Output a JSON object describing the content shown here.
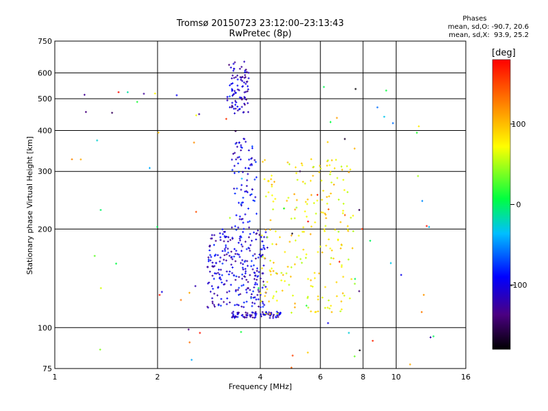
{
  "header": {
    "title": "Tromsø 20150723 23:12:00–23:13:43",
    "subtitle": "RwPretec (8p)"
  },
  "phases": {
    "heading": "Phases",
    "line1": "mean, sd,O: -90.7, 20.6",
    "line2": "mean, sd,X:  93.9, 25.2"
  },
  "colorbar": {
    "unit": "[deg]",
    "ticks": [
      {
        "value": 100,
        "label": "100"
      },
      {
        "value": 0,
        "label": "0"
      },
      {
        "value": -100,
        "label": "-100"
      }
    ],
    "range": [
      -180,
      180
    ]
  },
  "chart_data": {
    "type": "scatter",
    "title": "Tromsø 20150723 23:12:00–23:13:43",
    "subtitle": "RwPretec (8p)",
    "xlabel": "Frequency [MHz]",
    "ylabel": "Stationary phase Virtual Height [km]",
    "x_scale": "log",
    "y_scale": "log",
    "xlim": [
      1,
      16
    ],
    "ylim": [
      75,
      750
    ],
    "x_ticks": [
      1,
      2,
      4,
      6,
      8,
      10,
      16
    ],
    "y_ticks": [
      75,
      100,
      200,
      300,
      400,
      500,
      600,
      750
    ],
    "grid": true,
    "color_scale": "phase [deg]",
    "clusters": [
      {
        "label": "",
        "freq_range": [
          3.2,
          3.7
        ],
        "height_range": [
          450,
          650
        ],
        "phase": -115,
        "points": 90
      },
      {
        "label": "",
        "freq_range": [
          3.3,
          4.6
        ],
        "height_range": [
          107,
          112
        ],
        "phase": -110,
        "points": 80
      },
      {
        "label": "",
        "freq_range": [
          2.8,
          4.2
        ],
        "height_range": [
          115,
          200
        ],
        "phase": -105,
        "points": 260
      },
      {
        "label": "",
        "freq_range": [
          3.3,
          3.9
        ],
        "height_range": [
          200,
          380
        ],
        "phase": -100,
        "points": 80
      },
      {
        "label": "",
        "freq_range": [
          4.0,
          7.5
        ],
        "height_range": [
          110,
          330
        ],
        "phase": 80,
        "points": 220
      },
      {
        "label": "",
        "freq_range": [
          1.1,
          13
        ],
        "height_range": [
          75,
          560
        ],
        "phase": 0,
        "points": 90
      }
    ]
  }
}
